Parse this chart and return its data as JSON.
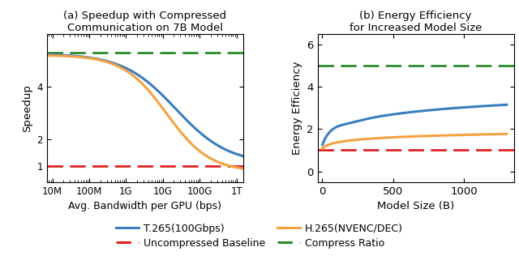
{
  "title_a": "(a) Speedup with Compressed\nCommunication on 7B Model",
  "title_b": "(b) Energy Efficiency\nfor Increased Model Size",
  "ylabel_a": "Speedup",
  "ylabel_b": "Energy Efficiency",
  "xlabel_a": "Avg. Bandwidth per GPU (bps)",
  "xlabel_b": "Model Size (B)",
  "xticklabels_a": [
    "10M",
    "100M",
    "1G",
    "10G",
    "100G",
    "1T"
  ],
  "yticks_a": [
    1,
    2,
    4
  ],
  "compress_ratio_a": 5.3,
  "baseline_a": 1.0,
  "xticks_b": [
    0,
    500,
    1000
  ],
  "yticks_b": [
    0,
    2,
    4,
    6
  ],
  "compress_ratio_b": 5.0,
  "baseline_b": 1.0,
  "color_blue": "#3a7ebf",
  "color_orange": "#f5a142",
  "color_red": "#dd2222",
  "color_green": "#2a8c2a",
  "legend_entries": [
    "T.265(100Gbps)",
    "H.265(NVENC/DEC)",
    "Uncompressed Baseline",
    "Compress Ratio"
  ]
}
